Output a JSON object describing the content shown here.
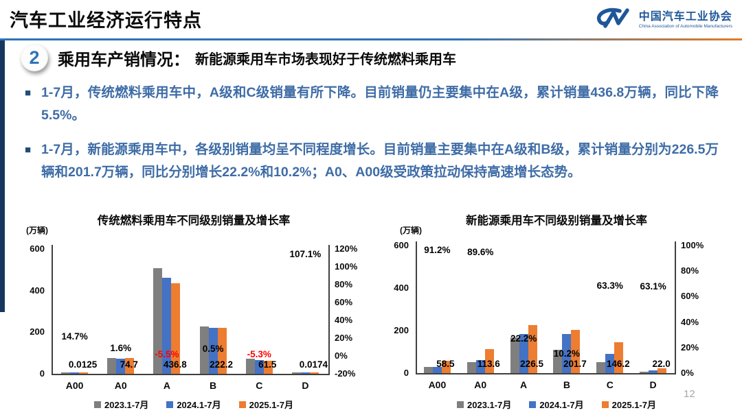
{
  "header": {
    "title": "汽车工业经济运行特点",
    "logo": {
      "name_cn": "中国汽车工业协会",
      "name_en": "China Association of Automobile Manufacturers"
    }
  },
  "section": {
    "number": "2",
    "title": "乘用车产销情况：",
    "subtitle": "新能源乘用车市场表现好于传统燃料乘用车"
  },
  "bullets": [
    {
      "text": "1-7月，传统燃料乘用车中，A级和C级销量有所下降。目前销量仍主要集中在A级，累计销量436.8万辆，同比下降5.5%。"
    },
    {
      "text": "1-7月，新能源乘用车中，各级别销量均呈不同程度增长。目前销量主要集中在A级和B级，累计销量分别为226.5万辆和201.7万辆，同比分别增长22.2%和10.2%；A0、A00级受政策拉动保持高速增长态势。"
    }
  ],
  "page_number": "12",
  "colors": {
    "accent_blue": "#2E74B5",
    "navy": "#17375E",
    "text_blue": "#3E6CA6",
    "series_gray": "#7F7F7F",
    "series_blue": "#4472C4",
    "series_orange": "#ED7D31",
    "negative_red": "#FF0000",
    "logo_blue": "#1E5799"
  },
  "chart_data": [
    {
      "type": "bar",
      "title": "传统燃料乘用车不同级别销量及增长率",
      "unit_label": "(万辆)",
      "categories": [
        "A00",
        "A0",
        "A",
        "B",
        "C",
        "D"
      ],
      "series": [
        {
          "name": "2023.1-7月",
          "color": "#7F7F7F",
          "values": [
            0.011,
            76.5,
            507.0,
            226.0,
            73.0,
            0.008
          ]
        },
        {
          "name": "2024.1-7月",
          "color": "#4472C4",
          "values": [
            0.0109,
            73.5,
            462.2,
            221.1,
            64.9,
            0.0084
          ]
        },
        {
          "name": "2025.1-7月",
          "color": "#ED7D31",
          "values": [
            0.0125,
            74.7,
            436.8,
            222.2,
            61.5,
            0.0174
          ]
        }
      ],
      "value_labels": [
        "0.0125",
        "74.7",
        "436.8",
        "222.2",
        "61.5",
        "0.0174"
      ],
      "growth_labels": [
        {
          "text": "14.7%",
          "value": 14.7
        },
        {
          "text": "1.6%",
          "value": 1.6
        },
        {
          "text": "-5.5%",
          "value": -5.5
        },
        {
          "text": "0.5%",
          "value": 0.5
        },
        {
          "text": "-5.3%",
          "value": -5.3
        },
        {
          "text": "107.1%",
          "value": 107.1
        }
      ],
      "ylim_left": [
        0,
        600
      ],
      "left_ticks": [
        "600",
        "400",
        "200",
        "0"
      ],
      "right_ticks": [
        "120%",
        "100%",
        "80%",
        "60%",
        "40%",
        "20%",
        "0%",
        "-20%"
      ],
      "right_range": [
        -20,
        120
      ],
      "grid": false,
      "legend_position": "bottom"
    },
    {
      "type": "bar",
      "title": "新能源乘用车不同级别销量及增长率",
      "unit_label": "(万辆)",
      "categories": [
        "A00",
        "A0",
        "A",
        "B",
        "C",
        "D"
      ],
      "series": [
        {
          "name": "2023.1-7月",
          "color": "#7F7F7F",
          "values": [
            29.0,
            53.0,
            168.0,
            110.0,
            52.0,
            1.5
          ]
        },
        {
          "name": "2024.1-7月",
          "color": "#4472C4",
          "values": [
            30.6,
            59.9,
            185.3,
            183.0,
            89.5,
            13.5
          ]
        },
        {
          "name": "2025.1-7月",
          "color": "#ED7D31",
          "values": [
            58.5,
            113.6,
            226.5,
            201.7,
            146.2,
            22.0
          ]
        }
      ],
      "value_labels": [
        "58.5",
        "113.6",
        "226.5",
        "201.7",
        "146.2",
        "22.0"
      ],
      "growth_labels": [
        {
          "text": "91.2%",
          "value": 91.2
        },
        {
          "text": "89.6%",
          "value": 89.6
        },
        {
          "text": "22.2%",
          "value": 22.2
        },
        {
          "text": "10.2%",
          "value": 10.2
        },
        {
          "text": "63.3%",
          "value": 63.3
        },
        {
          "text": "63.1%",
          "value": 63.1
        }
      ],
      "ylim_left": [
        0,
        600
      ],
      "left_ticks": [
        "600",
        "400",
        "200",
        "0"
      ],
      "right_ticks": [
        "100%",
        "80%",
        "60%",
        "40%",
        "20%",
        "0%"
      ],
      "right_range": [
        0,
        100
      ],
      "grid": false,
      "legend_position": "bottom"
    }
  ]
}
